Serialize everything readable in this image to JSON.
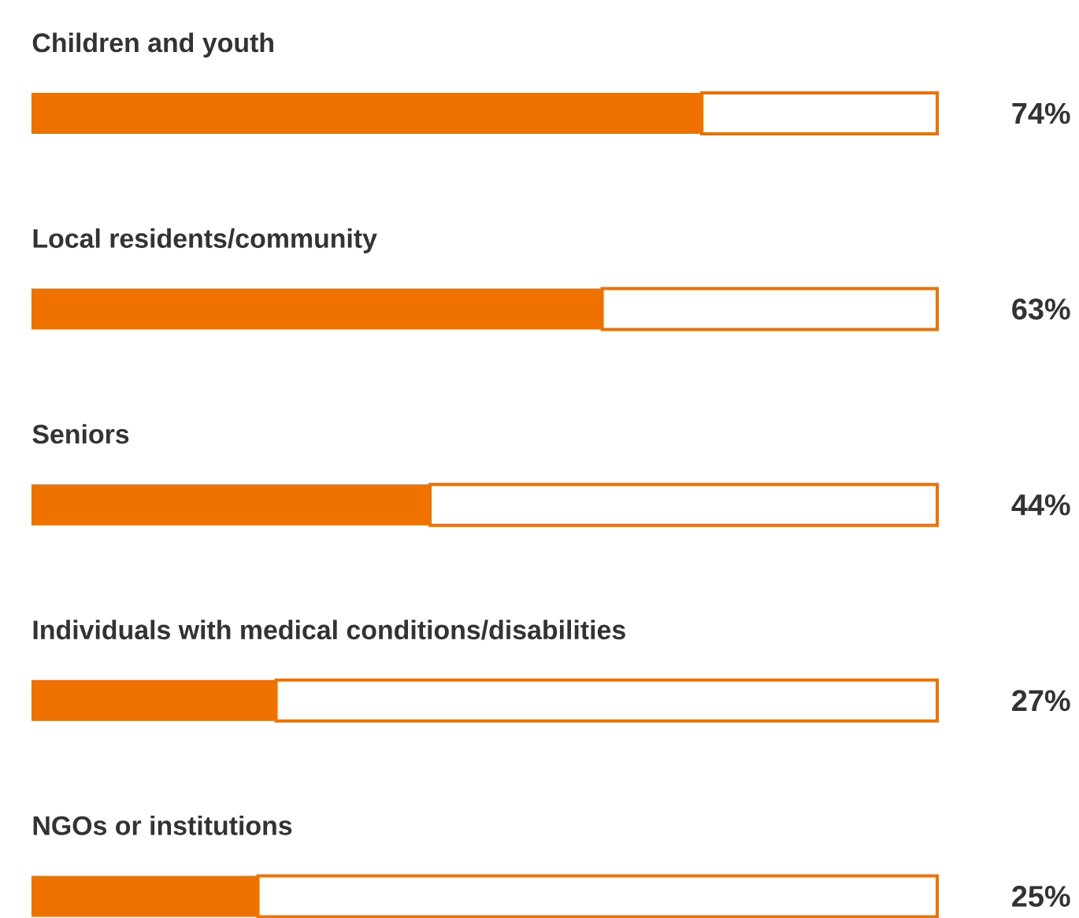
{
  "chart_data": {
    "type": "bar",
    "orientation": "horizontal",
    "stacked": true,
    "categories": [
      "Children and youth",
      "Local residents/community",
      "Seniors",
      "Individuals with medical conditions/disabilities",
      "NGOs or institutions"
    ],
    "series": [
      {
        "color": "#ef7200",
        "values": [
          74,
          63,
          44,
          27,
          25
        ],
        "value_labels": [
          "74%",
          "63%",
          "44%",
          "27%",
          "25%"
        ]
      },
      {
        "color": "#ffffff",
        "values": [
          26,
          37,
          56,
          73,
          75
        ]
      }
    ],
    "tick_labels": false
  }
}
